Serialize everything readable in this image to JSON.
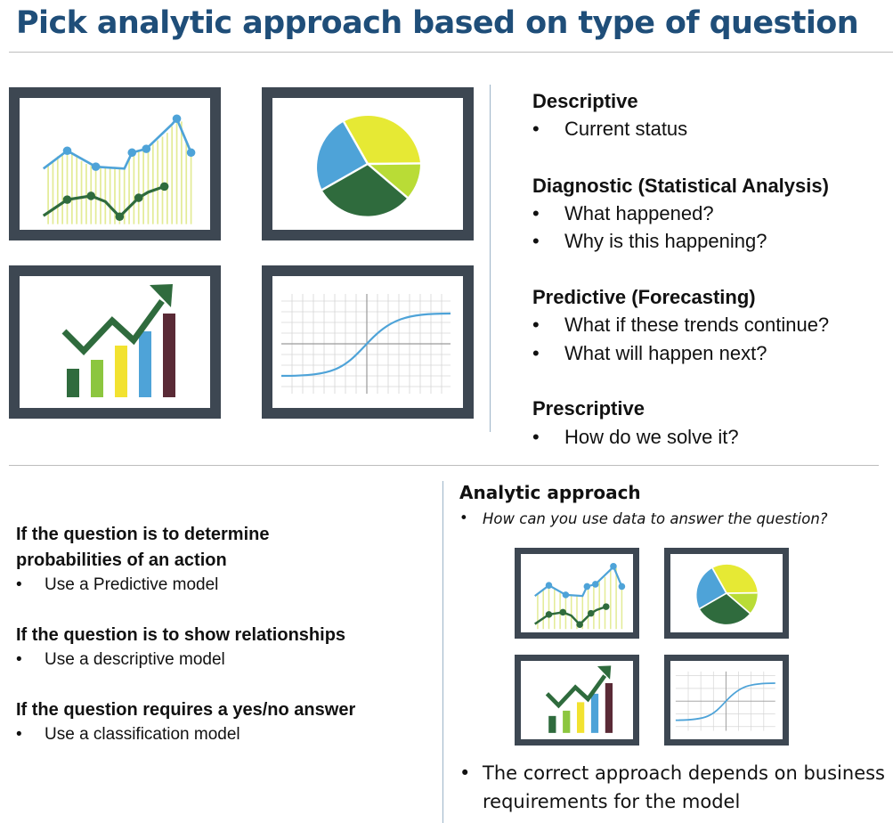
{
  "title": "Pick analytic approach based on type of question",
  "colors": {
    "title": "#1f4e79",
    "frame": "#3d4752",
    "line_blue": "#4ea3d8",
    "line_green": "#2f6b3d",
    "bar_fill": "#e9f0a8",
    "pie_yellow": "#e6e934",
    "pie_lime": "#b9dc36",
    "pie_green": "#2f6b3d",
    "pie_blue": "#4ea3d8",
    "bar_colors": [
      "#2f6b3d",
      "#8cc63f",
      "#f2e230",
      "#4ea3d8",
      "#5a2a36"
    ]
  },
  "icons": [
    "line-chart-icon",
    "pie-chart-icon",
    "growth-bar-chart-icon",
    "s-curve-chart-icon"
  ],
  "types": [
    {
      "heading": "Descriptive",
      "bullets": [
        "Current status"
      ]
    },
    {
      "heading": "Diagnostic (Statistical Analysis)",
      "bullets": [
        "What happened?",
        "Why is this happening?"
      ]
    },
    {
      "heading": "Predictive (Forecasting)",
      "bullets": [
        "What if these trends continue?",
        "What will happen next?"
      ]
    },
    {
      "heading": "Prescriptive",
      "bullets": [
        "How do we solve it?"
      ]
    }
  ],
  "questions": [
    {
      "question": "If the question is to determine probabilities of an action",
      "answer": "Use a Predictive model"
    },
    {
      "question": "If the question is to show relationships",
      "answer": "Use a descriptive model"
    },
    {
      "question": "If the question requires a yes/no answer",
      "answer": "Use a classification model"
    }
  ],
  "approach": {
    "heading": "Analytic approach",
    "question": "How can you use data to answer the question?",
    "note": "The correct approach depends on business requirements for the model"
  },
  "bullet_char": "•"
}
